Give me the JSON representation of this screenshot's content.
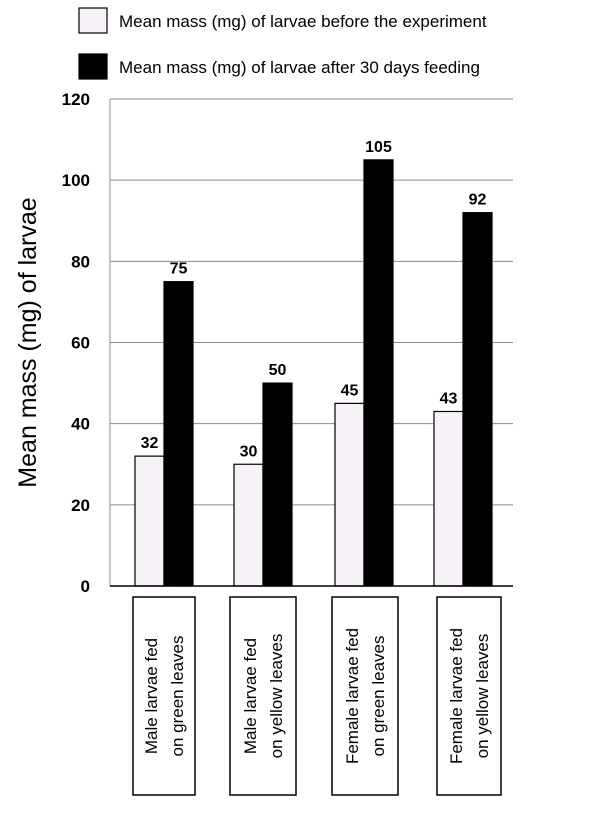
{
  "chart_data": {
    "type": "bar",
    "ylabel": "Mean mass (mg) of larvae",
    "ylim": [
      0,
      120
    ],
    "yticks": [
      0,
      20,
      40,
      60,
      80,
      100,
      120
    ],
    "grid": true,
    "legend_position": "top",
    "categories": [
      [
        "Male  larvae  fed",
        "on green leaves"
      ],
      [
        "Male  larvae  fed",
        "on yellow  leaves"
      ],
      [
        "Female larvae fed",
        "on  green  leaves"
      ],
      [
        "Female larvae fed",
        "on  yellow  leaves"
      ]
    ],
    "series": [
      {
        "name": "Mean mass (mg) of larvae before the experiment",
        "color": "#f7f1f8",
        "values": [
          32,
          30,
          45,
          43
        ]
      },
      {
        "name": "Mean mass (mg) of larvae after 30 days feeding",
        "color": "#000000",
        "values": [
          75,
          50,
          105,
          92
        ]
      }
    ]
  }
}
